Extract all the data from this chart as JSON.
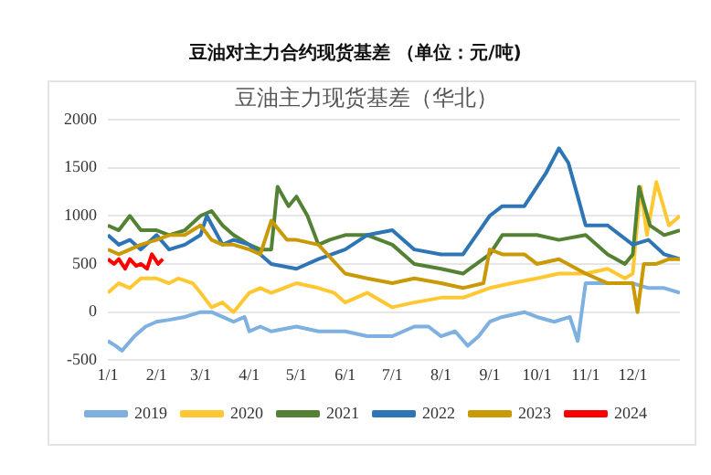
{
  "chart_data": {
    "type": "line",
    "title": "豆油对主力合约现货基差 （单位：元/吨)",
    "subtitle": "豆油主力现货基差（华北）",
    "xlim": [
      "--01-01",
      "--12-31"
    ],
    "xticks": [
      {
        "value": "--01-01",
        "label": "1/1"
      },
      {
        "value": "--02-01",
        "label": "2/1"
      },
      {
        "value": "--03-01",
        "label": "3/1"
      },
      {
        "value": "--04-01",
        "label": "4/1"
      },
      {
        "value": "--05-01",
        "label": "5/1"
      },
      {
        "value": "--06-01",
        "label": "6/1"
      },
      {
        "value": "--07-01",
        "label": "7/1"
      },
      {
        "value": "--08-01",
        "label": "8/1"
      },
      {
        "value": "--09-01",
        "label": "9/1"
      },
      {
        "value": "--10-01",
        "label": "10/1"
      },
      {
        "value": "--11-01",
        "label": "11/1"
      },
      {
        "value": "--12-01",
        "label": "12/1"
      }
    ],
    "ylim": [
      -500,
      2000
    ],
    "yticks": [
      -500,
      0,
      500,
      1000,
      1500,
      2000
    ],
    "grid": "y",
    "legend": "bottom",
    "marker": "none",
    "line_style": "solid",
    "series": [
      {
        "name": "2019",
        "color": "#7eb0e0",
        "x": [
          "--01-01",
          "--01-06",
          "--01-10",
          "--01-18",
          "--01-25",
          "--02-01",
          "--02-09",
          "--02-19",
          "--03-01",
          "--03-08",
          "--03-15",
          "--03-22",
          "--03-29",
          "--04-01",
          "--04-08",
          "--04-15",
          "--05-01",
          "--05-15",
          "--06-01",
          "--06-15",
          "--06-24",
          "--07-01",
          "--07-15",
          "--07-24",
          "--08-01",
          "--08-10",
          "--08-18",
          "--08-25",
          "--09-01",
          "--09-09",
          "--09-23",
          "--10-01",
          "--10-12",
          "--10-22",
          "--10-27",
          "--11-01",
          "--11-08",
          "--11-16",
          "--12-01",
          "--12-11",
          "--12-21",
          "--12-31"
        ],
        "values": [
          -300,
          -350,
          -400,
          -250,
          -150,
          -100,
          -80,
          -50,
          0,
          0,
          -50,
          -100,
          -50,
          -200,
          -150,
          -200,
          -150,
          -200,
          -200,
          -250,
          -250,
          -250,
          -150,
          -150,
          -250,
          -200,
          -350,
          -250,
          -100,
          -50,
          0,
          -50,
          -100,
          -50,
          -300,
          300,
          300,
          300,
          300,
          250,
          250,
          200
        ]
      },
      {
        "name": "2020",
        "color": "#ffc832",
        "x": [
          "--01-01",
          "--01-08",
          "--01-15",
          "--01-22",
          "--02-01",
          "--02-09",
          "--02-15",
          "--02-24",
          "--03-01",
          "--03-08",
          "--03-15",
          "--03-22",
          "--04-01",
          "--04-08",
          "--04-15",
          "--05-01",
          "--05-15",
          "--05-25",
          "--06-01",
          "--06-15",
          "--07-01",
          "--07-15",
          "--08-01",
          "--08-15",
          "--09-01",
          "--09-15",
          "--10-01",
          "--10-15",
          "--11-01",
          "--11-15",
          "--11-26",
          "--12-01",
          "--12-06",
          "--12-10",
          "--12-16",
          "--12-24",
          "--12-31"
        ],
        "values": [
          200,
          300,
          250,
          350,
          350,
          300,
          350,
          300,
          200,
          50,
          100,
          0,
          200,
          250,
          200,
          300,
          250,
          200,
          100,
          200,
          50,
          100,
          150,
          150,
          250,
          300,
          350,
          400,
          400,
          450,
          350,
          400,
          1300,
          800,
          1350,
          900,
          1000
        ]
      },
      {
        "name": "2021",
        "color": "#548235",
        "x": [
          "--01-01",
          "--01-08",
          "--01-15",
          "--01-22",
          "--02-01",
          "--02-09",
          "--02-19",
          "--03-01",
          "--03-08",
          "--03-15",
          "--03-22",
          "--04-01",
          "--04-08",
          "--04-15",
          "--04-19",
          "--04-26",
          "--05-01",
          "--05-08",
          "--05-15",
          "--05-22",
          "--06-01",
          "--06-15",
          "--07-01",
          "--07-15",
          "--08-01",
          "--08-15",
          "--09-01",
          "--09-09",
          "--09-23",
          "--10-01",
          "--10-15",
          "--11-01",
          "--11-15",
          "--11-26",
          "--12-01",
          "--12-05",
          "--12-12",
          "--12-21",
          "--12-31"
        ],
        "values": [
          900,
          850,
          1000,
          850,
          850,
          800,
          850,
          1000,
          1050,
          900,
          800,
          700,
          650,
          650,
          1300,
          1100,
          1200,
          1000,
          700,
          750,
          800,
          800,
          700,
          500,
          450,
          400,
          600,
          800,
          800,
          800,
          750,
          800,
          600,
          500,
          600,
          1300,
          900,
          800,
          850
        ]
      },
      {
        "name": "2022",
        "color": "#2e75b6",
        "x": [
          "--01-01",
          "--01-08",
          "--01-15",
          "--01-22",
          "--02-01",
          "--02-09",
          "--02-19",
          "--03-01",
          "--03-05",
          "--03-15",
          "--03-22",
          "--04-01",
          "--04-08",
          "--04-15",
          "--05-01",
          "--05-15",
          "--06-01",
          "--06-15",
          "--07-01",
          "--07-15",
          "--08-01",
          "--08-15",
          "--09-01",
          "--09-09",
          "--09-23",
          "--10-01",
          "--10-07",
          "--10-15",
          "--10-21",
          "--10-27",
          "--11-01",
          "--11-08",
          "--11-15",
          "--12-01",
          "--12-11",
          "--12-21",
          "--12-31"
        ],
        "values": [
          800,
          700,
          750,
          650,
          800,
          650,
          700,
          800,
          1000,
          700,
          750,
          700,
          600,
          500,
          450,
          550,
          650,
          800,
          850,
          650,
          600,
          600,
          1000,
          1100,
          1100,
          1300,
          1450,
          1700,
          1550,
          1200,
          900,
          900,
          900,
          700,
          750,
          600,
          550
        ]
      },
      {
        "name": "2023",
        "color": "#c99a06",
        "x": [
          "--01-01",
          "--01-08",
          "--01-15",
          "--01-22",
          "--02-01",
          "--02-09",
          "--02-19",
          "--03-01",
          "--03-08",
          "--03-15",
          "--03-22",
          "--04-01",
          "--04-08",
          "--04-15",
          "--04-25",
          "--05-01",
          "--05-15",
          "--06-01",
          "--06-15",
          "--07-01",
          "--07-15",
          "--08-01",
          "--08-15",
          "--08-28",
          "--09-01",
          "--09-09",
          "--09-23",
          "--10-01",
          "--10-15",
          "--11-01",
          "--11-15",
          "--12-01",
          "--12-04",
          "--12-08",
          "--12-16",
          "--12-24",
          "--12-31"
        ],
        "values": [
          650,
          600,
          650,
          700,
          750,
          800,
          800,
          900,
          750,
          700,
          700,
          650,
          600,
          950,
          750,
          750,
          700,
          400,
          350,
          300,
          350,
          300,
          250,
          300,
          650,
          600,
          600,
          500,
          550,
          400,
          300,
          300,
          0,
          500,
          500,
          550,
          550
        ]
      },
      {
        "name": "2024",
        "color": "#ff0000",
        "x": [
          "--01-01",
          "--01-05",
          "--01-08",
          "--01-12",
          "--01-15",
          "--01-19",
          "--01-22",
          "--01-26",
          "--01-29",
          "--02-02",
          "--02-05"
        ],
        "values": [
          550,
          500,
          550,
          450,
          550,
          480,
          500,
          450,
          600,
          500,
          550
        ]
      }
    ]
  }
}
